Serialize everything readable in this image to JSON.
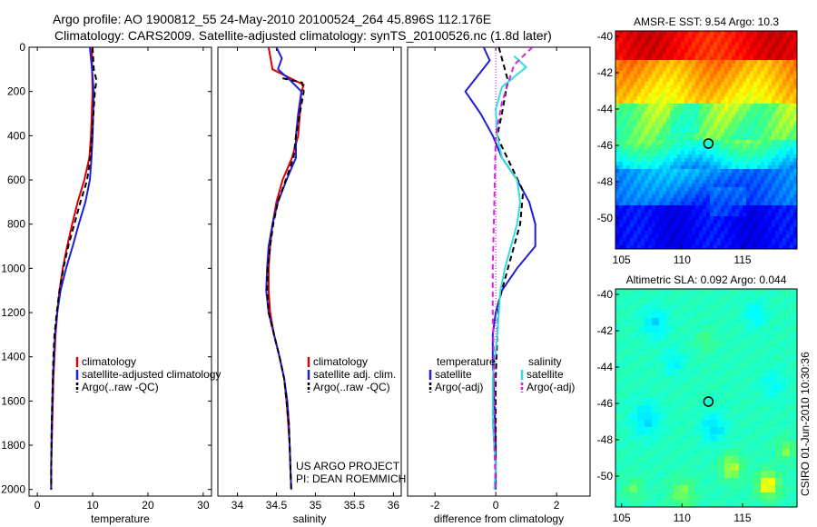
{
  "header": {
    "line1": "Argo profile: AO 1900812_55 24-May-2010 20100524_264 45.896S 112.176E",
    "line2": "Climatology: CARS2009. Satellite-adjusted climatology: synTS_20100526.nc (1.8d later)"
  },
  "credits": {
    "project": "US ARGO PROJECT",
    "pi": "PI: DEAN ROEMMICH",
    "side_label": "CSIRO 01-Jun-2010 10:30:36"
  },
  "colors": {
    "red": "#dd0000",
    "blue": "#1f1fd6",
    "black": "#000000",
    "cyan": "#33dddd",
    "magenta": "#dd22dd"
  },
  "chart_data": [
    {
      "type": "line",
      "id": "temperature",
      "title": "",
      "xlabel": "temperature",
      "ylabel": "",
      "xlim": [
        -1.5,
        31.5
      ],
      "ylim": [
        2030,
        0
      ],
      "xticks": [
        0,
        10,
        20,
        30
      ],
      "yticks": [
        0,
        200,
        400,
        600,
        800,
        1000,
        1200,
        1400,
        1600,
        1800,
        2000
      ],
      "grid": false,
      "legend": {
        "placement": "lower-center",
        "entries": [
          "climatology",
          "satellite-adjusted climatology",
          "Argo(..raw -QC)"
        ]
      },
      "series": [
        {
          "name": "climatology",
          "color": "red",
          "dash": "solid",
          "points": [
            [
              9.9,
              0
            ],
            [
              9.9,
              100
            ],
            [
              10.0,
              200
            ],
            [
              9.7,
              400
            ],
            [
              9.4,
              500
            ],
            [
              8.5,
              600
            ],
            [
              7.3,
              700
            ],
            [
              6.3,
              800
            ],
            [
              5.4,
              900
            ],
            [
              4.6,
              1000
            ],
            [
              4.0,
              1100
            ],
            [
              3.6,
              1200
            ],
            [
              3.3,
              1300
            ],
            [
              3.1,
              1400
            ],
            [
              2.9,
              1500
            ],
            [
              2.8,
              1600
            ],
            [
              2.7,
              1700
            ],
            [
              2.6,
              1800
            ],
            [
              2.5,
              1900
            ],
            [
              2.5,
              2000
            ]
          ]
        },
        {
          "name": "satellite-adjusted climatology",
          "color": "blue",
          "dash": "solid",
          "points": [
            [
              9.5,
              0
            ],
            [
              9.9,
              100
            ],
            [
              10.2,
              200
            ],
            [
              10.0,
              400
            ],
            [
              9.8,
              500
            ],
            [
              9.5,
              600
            ],
            [
              8.7,
              700
            ],
            [
              7.5,
              800
            ],
            [
              6.4,
              900
            ],
            [
              5.2,
              1000
            ],
            [
              4.2,
              1100
            ],
            [
              3.6,
              1200
            ],
            [
              3.2,
              1300
            ],
            [
              3.0,
              1400
            ],
            [
              2.8,
              1500
            ],
            [
              2.7,
              1600
            ],
            [
              2.6,
              1700
            ],
            [
              2.55,
              1800
            ],
            [
              2.5,
              1900
            ],
            [
              2.5,
              2000
            ]
          ]
        },
        {
          "name": "Argo(..raw -QC)",
          "color": "black",
          "dash": "dashed",
          "points": [
            [
              10.0,
              0
            ],
            [
              10.2,
              100
            ],
            [
              10.7,
              150
            ],
            [
              10.4,
              200
            ],
            [
              9.9,
              400
            ],
            [
              9.6,
              500
            ],
            [
              9.0,
              600
            ],
            [
              7.8,
              700
            ],
            [
              6.7,
              800
            ],
            [
              5.6,
              900
            ],
            [
              4.7,
              1000
            ],
            [
              4.0,
              1100
            ],
            [
              3.5,
              1200
            ],
            [
              3.1,
              1300
            ],
            [
              2.9,
              1400
            ],
            [
              2.8,
              1500
            ],
            [
              2.7,
              1600
            ],
            [
              2.6,
              1700
            ],
            [
              2.55,
              1800
            ],
            [
              2.5,
              1900
            ],
            [
              2.5,
              2000
            ]
          ]
        }
      ]
    },
    {
      "type": "line",
      "id": "salinity",
      "title": "",
      "xlabel": "salinity",
      "ylabel": "",
      "xlim": [
        33.75,
        36.1
      ],
      "ylim": [
        2030,
        0
      ],
      "xticks": [
        34,
        34.5,
        35,
        35.5,
        36
      ],
      "yticks": [],
      "grid": false,
      "legend": {
        "placement": "lower-center",
        "entries": [
          "climatology",
          "satellite adj. clim.",
          "Argo(..raw -QC)"
        ]
      },
      "series": [
        {
          "name": "climatology",
          "color": "red",
          "dash": "solid",
          "points": [
            [
              34.4,
              0
            ],
            [
              34.45,
              100
            ],
            [
              34.85,
              170
            ],
            [
              34.82,
              200
            ],
            [
              34.8,
              300
            ],
            [
              34.78,
              400
            ],
            [
              34.7,
              500
            ],
            [
              34.58,
              600
            ],
            [
              34.5,
              700
            ],
            [
              34.45,
              800
            ],
            [
              34.42,
              900
            ],
            [
              34.4,
              1000
            ],
            [
              34.4,
              1100
            ],
            [
              34.42,
              1200
            ],
            [
              34.47,
              1300
            ],
            [
              34.54,
              1400
            ],
            [
              34.6,
              1500
            ],
            [
              34.63,
              1600
            ],
            [
              34.65,
              1700
            ],
            [
              34.67,
              1800
            ],
            [
              34.68,
              1900
            ],
            [
              34.69,
              2000
            ]
          ]
        },
        {
          "name": "satellite adj. clim.",
          "color": "blue",
          "dash": "solid",
          "points": [
            [
              34.5,
              0
            ],
            [
              34.57,
              50
            ],
            [
              34.52,
              100
            ],
            [
              34.68,
              150
            ],
            [
              34.82,
              200
            ],
            [
              34.78,
              300
            ],
            [
              34.75,
              400
            ],
            [
              34.75,
              500
            ],
            [
              34.63,
              600
            ],
            [
              34.52,
              700
            ],
            [
              34.45,
              800
            ],
            [
              34.4,
              900
            ],
            [
              34.38,
              1000
            ],
            [
              34.37,
              1100
            ],
            [
              34.4,
              1200
            ],
            [
              34.47,
              1300
            ],
            [
              34.54,
              1400
            ],
            [
              34.6,
              1500
            ],
            [
              34.64,
              1600
            ],
            [
              34.66,
              1700
            ],
            [
              34.67,
              1800
            ],
            [
              34.68,
              1900
            ],
            [
              34.69,
              2000
            ]
          ]
        },
        {
          "name": "Argo(..raw -QC)",
          "color": "black",
          "dash": "dashed",
          "points": [
            [
              34.58,
              140
            ],
            [
              34.83,
              160
            ],
            [
              34.85,
              200
            ],
            [
              34.8,
              300
            ],
            [
              34.75,
              400
            ],
            [
              34.72,
              500
            ],
            [
              34.62,
              600
            ],
            [
              34.52,
              700
            ],
            [
              34.46,
              800
            ],
            [
              34.42,
              900
            ],
            [
              34.39,
              1000
            ],
            [
              34.38,
              1100
            ],
            [
              34.4,
              1200
            ],
            [
              34.47,
              1300
            ],
            [
              34.54,
              1400
            ],
            [
              34.6,
              1500
            ],
            [
              34.63,
              1600
            ],
            [
              34.66,
              1700
            ],
            [
              34.67,
              1800
            ],
            [
              34.68,
              1900
            ],
            [
              34.69,
              2000
            ]
          ]
        }
      ]
    },
    {
      "type": "line",
      "id": "difference",
      "title": "",
      "xlabel": "difference from climatology",
      "ylabel": "",
      "xlim": [
        -2.9,
        3.1
      ],
      "ylim": [
        2030,
        0
      ],
      "xticks": [
        -2,
        0,
        2
      ],
      "yticks": [],
      "grid": false,
      "zero_line": true,
      "legend": {
        "placement": "lower-center",
        "columns": [
          "temperature",
          "salinity"
        ],
        "entries": [
          "satellite",
          "Argo(-adj)",
          "satellite",
          "Argo(-adj)"
        ]
      },
      "series": [
        {
          "name": "satellite",
          "group": "temperature",
          "color": "blue",
          "dash": "solid",
          "points": [
            [
              -0.4,
              0
            ],
            [
              -0.2,
              60
            ],
            [
              -1.0,
              200
            ],
            [
              -0.5,
              300
            ],
            [
              -0.1,
              400
            ],
            [
              0.2,
              500
            ],
            [
              0.7,
              600
            ],
            [
              1.1,
              700
            ],
            [
              1.3,
              800
            ],
            [
              1.3,
              900
            ],
            [
              0.7,
              1000
            ],
            [
              0.2,
              1100
            ],
            [
              0.0,
              1200
            ],
            [
              -0.1,
              1300
            ],
            [
              -0.1,
              1400
            ],
            [
              -0.05,
              1600
            ],
            [
              0.0,
              1800
            ],
            [
              0.0,
              2000
            ]
          ]
        },
        {
          "name": "Argo(-adj)",
          "group": "temperature",
          "color": "black",
          "dash": "dashed",
          "points": [
            [
              0.1,
              0
            ],
            [
              0.4,
              150
            ],
            [
              0.2,
              300
            ],
            [
              0.05,
              400
            ],
            [
              0.2,
              450
            ],
            [
              0.55,
              550
            ],
            [
              0.9,
              650
            ],
            [
              0.8,
              800
            ],
            [
              0.5,
              950
            ],
            [
              0.3,
              1050
            ],
            [
              0.1,
              1150
            ],
            [
              0.05,
              1300
            ],
            [
              0.0,
              1500
            ],
            [
              0.0,
              1700
            ],
            [
              0.0,
              2000
            ]
          ]
        },
        {
          "name": "satellite",
          "group": "salinity",
          "color": "cyan",
          "dash": "solid",
          "points": [
            [
              0.6,
              40
            ],
            [
              1.0,
              90
            ],
            [
              0.2,
              180
            ],
            [
              0.0,
              280
            ],
            [
              0.05,
              400
            ],
            [
              0.2,
              500
            ],
            [
              0.7,
              600
            ],
            [
              0.8,
              700
            ],
            [
              0.7,
              800
            ],
            [
              0.5,
              900
            ],
            [
              0.3,
              1000
            ],
            [
              0.15,
              1100
            ],
            [
              0.05,
              1300
            ],
            [
              -0.1,
              1500
            ],
            [
              -0.1,
              1700
            ],
            [
              0.0,
              1900
            ],
            [
              -0.05,
              2000
            ]
          ]
        },
        {
          "name": "Argo(-adj)",
          "group": "salinity",
          "color": "magenta",
          "dash": "dashed",
          "points": [
            [
              1.2,
              0
            ],
            [
              0.6,
              80
            ],
            [
              0.2,
              250
            ],
            [
              0.0,
              400
            ],
            [
              -0.05,
              700
            ],
            [
              -0.1,
              1000
            ],
            [
              -0.1,
              1200
            ],
            [
              -0.05,
              1500
            ],
            [
              -0.05,
              1800
            ],
            [
              0.0,
              2000
            ]
          ]
        }
      ]
    },
    {
      "type": "heatmap",
      "id": "sst-map",
      "title": "AMSR-E SST: 9.54 Argo: 10.3",
      "xlim": [
        104.5,
        119.5
      ],
      "ylim": [
        -51.7,
        -39.7
      ],
      "xticks": [
        105,
        110,
        115
      ],
      "yticks": [
        -40,
        -42,
        -44,
        -46,
        -48,
        -50
      ],
      "marker": {
        "lon": 112.18,
        "lat": -45.9
      },
      "field_description": "warm (red/orange) to the north, green/cyan band near -46 to -48, dark blue to the south",
      "colormap": [
        "#00008f",
        "#0000ff",
        "#0080ff",
        "#00ffff",
        "#40ff80",
        "#ffff00",
        "#ff8000",
        "#ff0000",
        "#800000"
      ]
    },
    {
      "type": "heatmap",
      "id": "sla-map",
      "title": "Altimetric SLA: 0.092 Argo: 0.044",
      "xlim": [
        104.5,
        119.5
      ],
      "ylim": [
        -51.7,
        -39.7
      ],
      "xticks": [
        105,
        110,
        115
      ],
      "yticks": [
        -40,
        -42,
        -44,
        -46,
        -48,
        -50
      ],
      "marker": {
        "lon": 112.18,
        "lat": -45.9
      },
      "field_description": "mostly green with cyan eddies and orange/yellow highs in the south",
      "colormap": [
        "#00008f",
        "#0000ff",
        "#0080ff",
        "#00ffff",
        "#40ff80",
        "#ffff00",
        "#ff8000",
        "#ff0000",
        "#800000"
      ]
    }
  ]
}
